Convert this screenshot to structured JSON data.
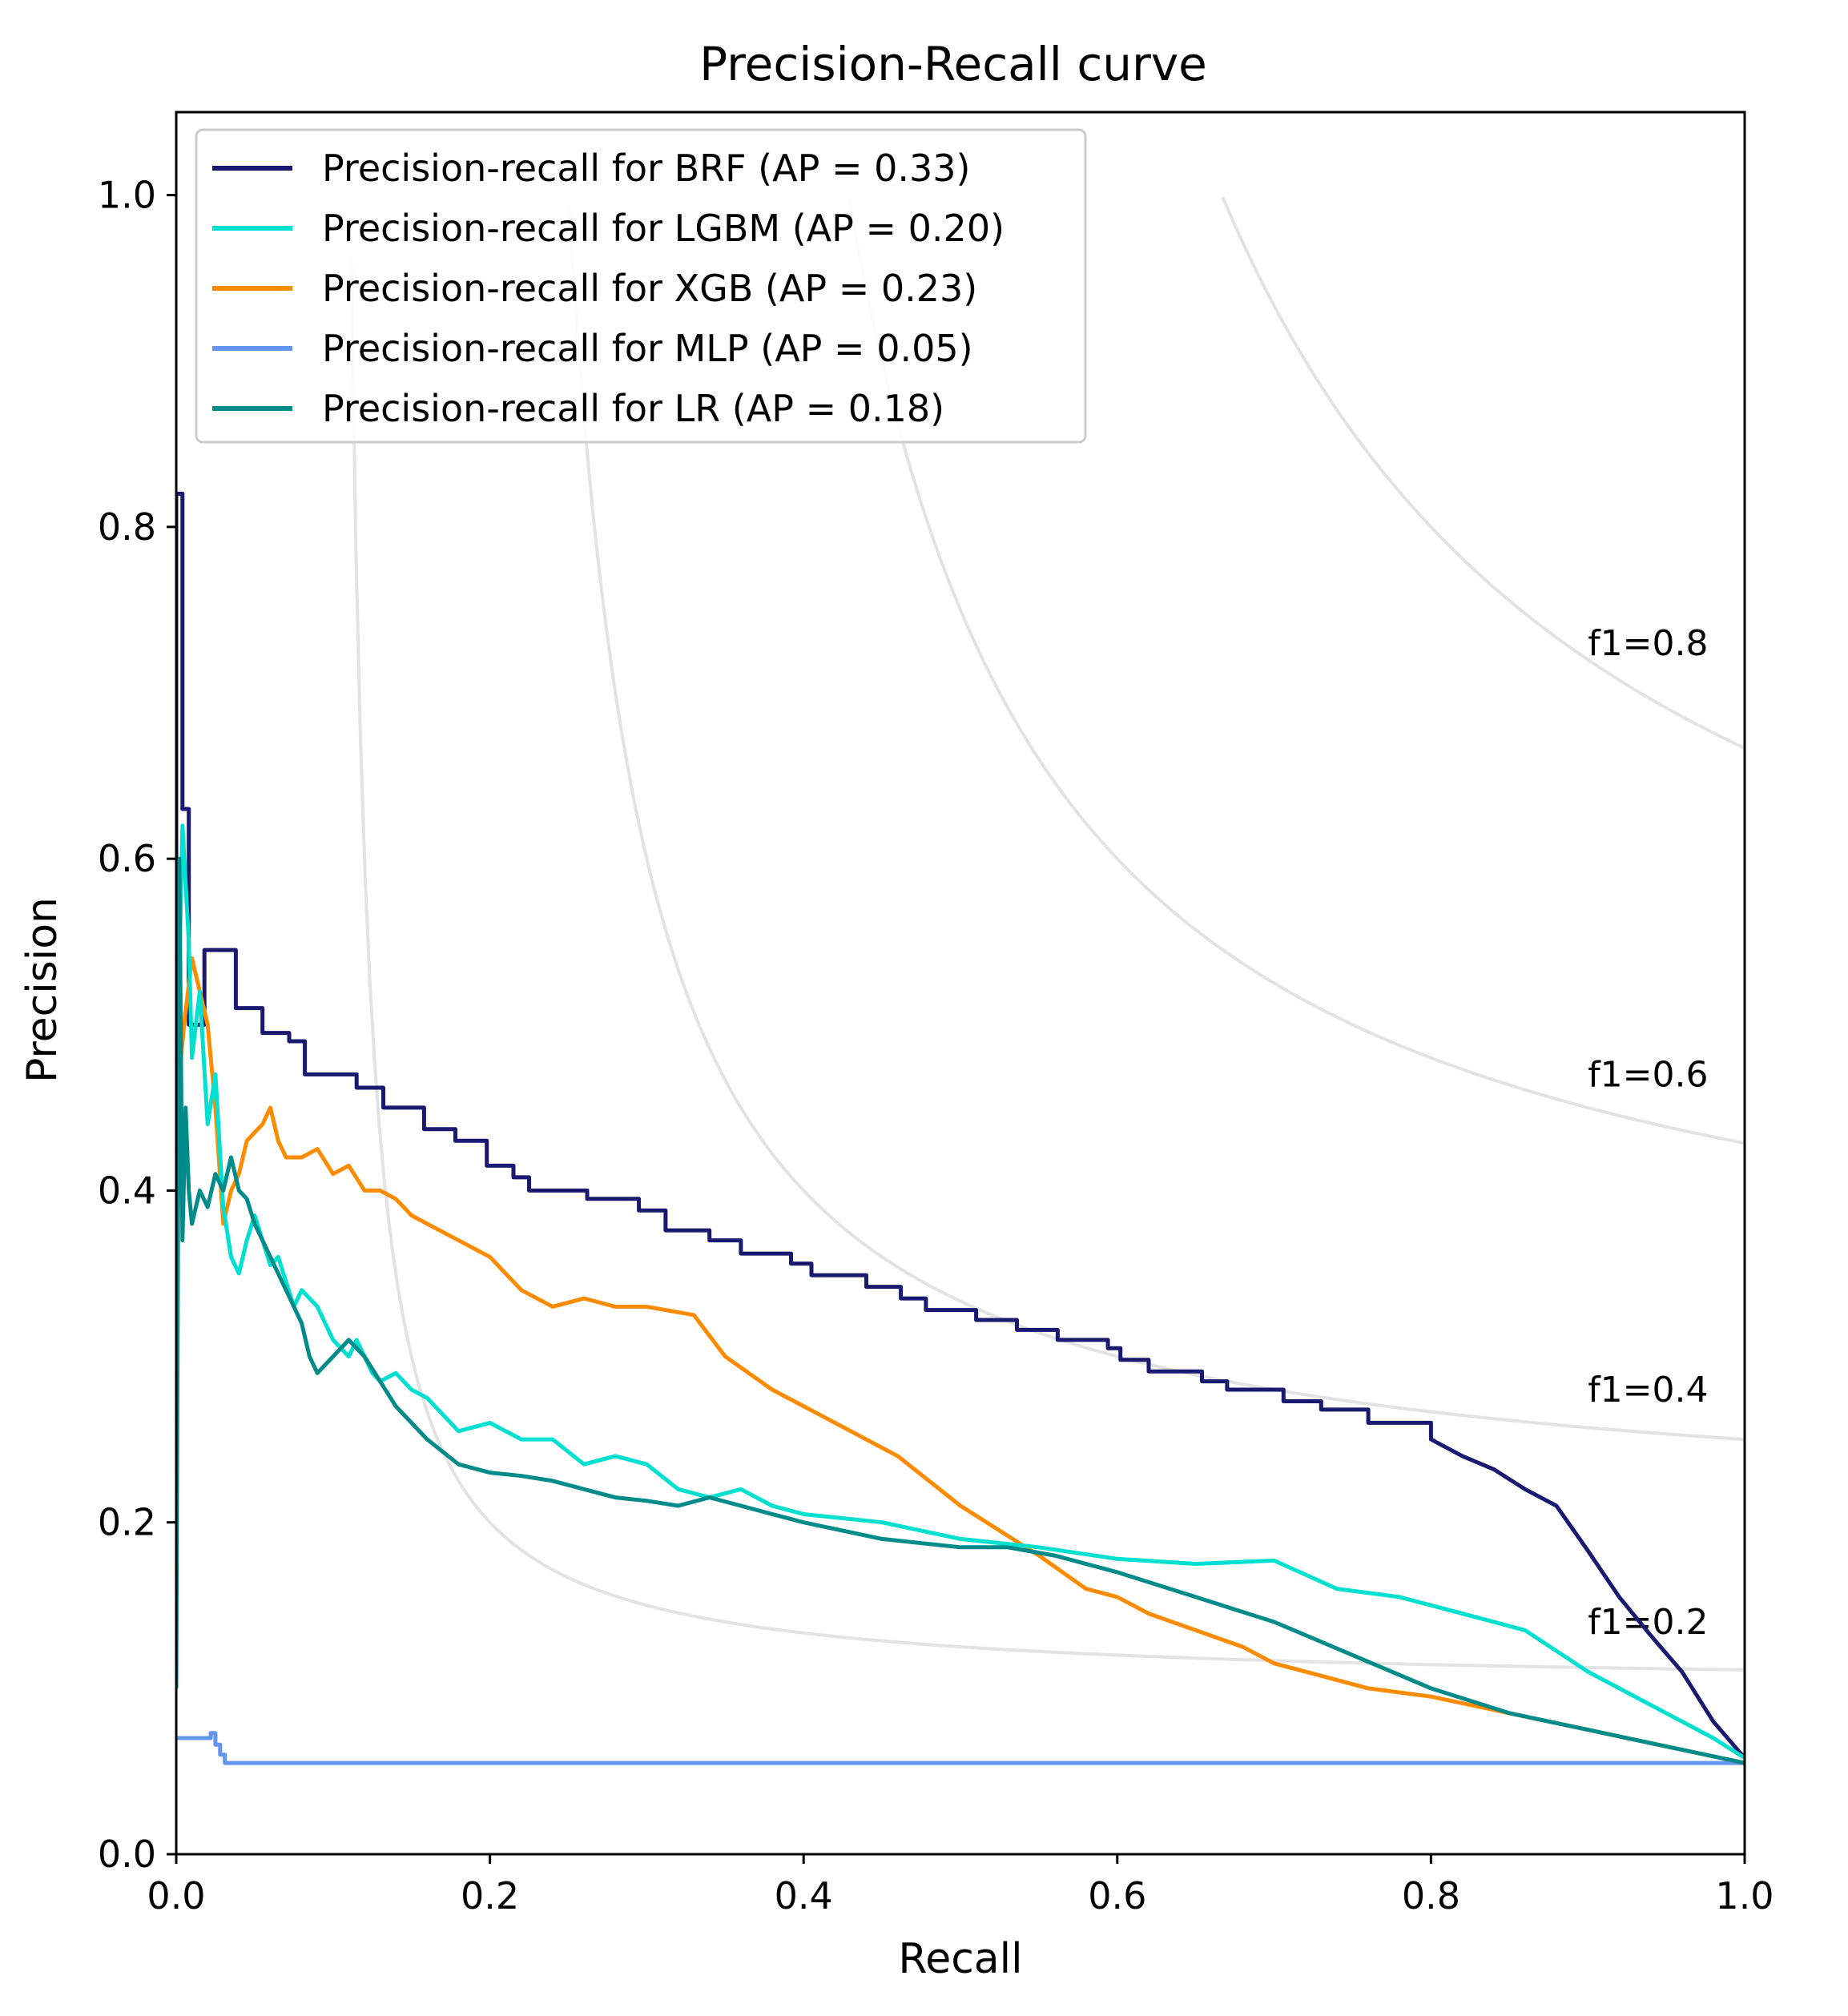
{
  "chart_data": {
    "type": "line",
    "title": "Precision-Recall curve",
    "xlabel": "Recall",
    "ylabel": "Precision",
    "xlim": [
      0.0,
      1.0
    ],
    "ylim": [
      0.0,
      1.05
    ],
    "xticks": [
      0.0,
      0.2,
      0.4,
      0.6,
      0.8,
      1.0
    ],
    "yticks": [
      0.0,
      0.2,
      0.4,
      0.6,
      0.8,
      1.0
    ],
    "xtick_labels": [
      "0.0",
      "0.2",
      "0.4",
      "0.6",
      "0.8",
      "1.0"
    ],
    "ytick_labels": [
      "0.0",
      "0.2",
      "0.4",
      "0.6",
      "0.8",
      "1.0"
    ],
    "grid": false,
    "legend_position": "top-left",
    "iso_f1": [
      {
        "f1": 0.2,
        "label": "f1=0.2",
        "label_y": 0.14
      },
      {
        "f1": 0.4,
        "label": "f1=0.4",
        "label_y": 0.28
      },
      {
        "f1": 0.6,
        "label": "f1=0.6",
        "label_y": 0.47
      },
      {
        "f1": 0.8,
        "label": "f1=0.8",
        "label_y": 0.73
      }
    ],
    "series": [
      {
        "name": "Precision-recall for  BRF (AP = 0.33)",
        "color": "#191970",
        "x": [
          0.0,
          0.0,
          0.004,
          0.004,
          0.008,
          0.008,
          0.018,
          0.018,
          0.038,
          0.038,
          0.055,
          0.055,
          0.072,
          0.072,
          0.082,
          0.082,
          0.115,
          0.115,
          0.132,
          0.132,
          0.158,
          0.158,
          0.178,
          0.178,
          0.198,
          0.198,
          0.215,
          0.215,
          0.225,
          0.225,
          0.262,
          0.262,
          0.295,
          0.295,
          0.312,
          0.312,
          0.34,
          0.34,
          0.36,
          0.36,
          0.392,
          0.392,
          0.405,
          0.405,
          0.44,
          0.44,
          0.462,
          0.462,
          0.478,
          0.478,
          0.51,
          0.51,
          0.536,
          0.536,
          0.562,
          0.562,
          0.594,
          0.594,
          0.602,
          0.602,
          0.62,
          0.62,
          0.654,
          0.654,
          0.67,
          0.67,
          0.706,
          0.706,
          0.73,
          0.73,
          0.76,
          0.76,
          0.8,
          0.8,
          0.82,
          0.84,
          0.86,
          0.88,
          0.9,
          0.92,
          0.94,
          0.96,
          0.98,
          1.0
        ],
        "y": [
          0.45,
          0.82,
          0.82,
          0.63,
          0.63,
          0.5,
          0.5,
          0.545,
          0.545,
          0.51,
          0.51,
          0.495,
          0.495,
          0.49,
          0.49,
          0.47,
          0.47,
          0.462,
          0.462,
          0.45,
          0.45,
          0.437,
          0.437,
          0.43,
          0.43,
          0.415,
          0.415,
          0.408,
          0.408,
          0.4,
          0.4,
          0.395,
          0.395,
          0.388,
          0.388,
          0.376,
          0.376,
          0.37,
          0.37,
          0.362,
          0.362,
          0.356,
          0.356,
          0.349,
          0.349,
          0.342,
          0.342,
          0.335,
          0.335,
          0.328,
          0.328,
          0.322,
          0.322,
          0.316,
          0.316,
          0.31,
          0.31,
          0.305,
          0.305,
          0.298,
          0.298,
          0.291,
          0.291,
          0.285,
          0.285,
          0.28,
          0.28,
          0.273,
          0.273,
          0.268,
          0.268,
          0.26,
          0.26,
          0.25,
          0.24,
          0.232,
          0.22,
          0.21,
          0.183,
          0.155,
          0.132,
          0.11,
          0.08,
          0.058
        ]
      },
      {
        "name": "Precision-recall for  LGBM (AP = 0.20)",
        "color": "#00e0d0",
        "x": [
          0.0,
          0.004,
          0.008,
          0.01,
          0.015,
          0.02,
          0.025,
          0.03,
          0.035,
          0.04,
          0.045,
          0.05,
          0.055,
          0.06,
          0.065,
          0.07,
          0.075,
          0.08,
          0.09,
          0.1,
          0.11,
          0.115,
          0.12,
          0.125,
          0.13,
          0.14,
          0.15,
          0.16,
          0.18,
          0.2,
          0.22,
          0.24,
          0.26,
          0.28,
          0.3,
          0.32,
          0.34,
          0.36,
          0.38,
          0.4,
          0.45,
          0.5,
          0.55,
          0.6,
          0.65,
          0.7,
          0.74,
          0.78,
          0.82,
          0.86,
          0.9,
          0.94,
          0.98,
          1.0
        ],
        "y": [
          0.45,
          0.62,
          0.55,
          0.48,
          0.52,
          0.44,
          0.47,
          0.39,
          0.36,
          0.35,
          0.37,
          0.385,
          0.37,
          0.355,
          0.36,
          0.345,
          0.33,
          0.34,
          0.33,
          0.31,
          0.3,
          0.31,
          0.3,
          0.29,
          0.285,
          0.29,
          0.28,
          0.275,
          0.255,
          0.26,
          0.25,
          0.25,
          0.235,
          0.24,
          0.235,
          0.22,
          0.215,
          0.22,
          0.21,
          0.205,
          0.2,
          0.19,
          0.185,
          0.178,
          0.175,
          0.177,
          0.16,
          0.155,
          0.145,
          0.135,
          0.11,
          0.09,
          0.07,
          0.058
        ]
      },
      {
        "name": "Precision-recall for  XGB (AP = 0.23)",
        "color": "#ff8c00",
        "x": [
          0.0,
          0.005,
          0.01,
          0.015,
          0.02,
          0.025,
          0.03,
          0.035,
          0.04,
          0.045,
          0.05,
          0.055,
          0.06,
          0.065,
          0.07,
          0.08,
          0.09,
          0.1,
          0.11,
          0.12,
          0.13,
          0.14,
          0.15,
          0.16,
          0.18,
          0.2,
          0.22,
          0.24,
          0.26,
          0.28,
          0.3,
          0.33,
          0.35,
          0.38,
          0.42,
          0.46,
          0.5,
          0.55,
          0.58,
          0.6,
          0.62,
          0.65,
          0.68,
          0.7,
          0.72,
          0.76,
          0.8,
          0.85,
          0.9,
          0.95,
          1.0
        ],
        "y": [
          0.45,
          0.5,
          0.54,
          0.52,
          0.5,
          0.45,
          0.38,
          0.4,
          0.41,
          0.43,
          0.435,
          0.44,
          0.45,
          0.43,
          0.42,
          0.42,
          0.425,
          0.41,
          0.415,
          0.4,
          0.4,
          0.395,
          0.385,
          0.38,
          0.37,
          0.36,
          0.34,
          0.33,
          0.335,
          0.33,
          0.33,
          0.325,
          0.3,
          0.28,
          0.26,
          0.24,
          0.21,
          0.18,
          0.16,
          0.155,
          0.145,
          0.135,
          0.125,
          0.115,
          0.11,
          0.1,
          0.095,
          0.085,
          0.075,
          0.065,
          0.055
        ]
      },
      {
        "name": "Precision-recall for  MLP (AP = 0.05)",
        "color": "#6495ed",
        "x": [
          0.0,
          0.022,
          0.022,
          0.025,
          0.025,
          0.028,
          0.028,
          0.031,
          0.031,
          1.0
        ],
        "y": [
          0.07,
          0.07,
          0.073,
          0.073,
          0.066,
          0.066,
          0.06,
          0.06,
          0.055,
          0.055
        ]
      },
      {
        "name": "Precision-recall for  LR (AP = 0.18)",
        "color": "#008b8b",
        "x": [
          0.0,
          0.002,
          0.004,
          0.006,
          0.008,
          0.01,
          0.015,
          0.02,
          0.025,
          0.03,
          0.035,
          0.04,
          0.045,
          0.05,
          0.055,
          0.06,
          0.065,
          0.07,
          0.075,
          0.08,
          0.085,
          0.09,
          0.1,
          0.11,
          0.12,
          0.13,
          0.14,
          0.15,
          0.16,
          0.18,
          0.2,
          0.22,
          0.24,
          0.26,
          0.28,
          0.3,
          0.32,
          0.34,
          0.36,
          0.38,
          0.4,
          0.45,
          0.5,
          0.53,
          0.56,
          0.6,
          0.65,
          0.7,
          0.75,
          0.8,
          0.85,
          0.9,
          0.95,
          1.0
        ],
        "y": [
          0.1,
          0.6,
          0.37,
          0.45,
          0.4,
          0.38,
          0.4,
          0.39,
          0.41,
          0.4,
          0.42,
          0.4,
          0.395,
          0.38,
          0.37,
          0.36,
          0.35,
          0.34,
          0.33,
          0.32,
          0.3,
          0.29,
          0.3,
          0.31,
          0.3,
          0.285,
          0.27,
          0.26,
          0.25,
          0.235,
          0.23,
          0.228,
          0.225,
          0.22,
          0.215,
          0.213,
          0.21,
          0.215,
          0.21,
          0.205,
          0.2,
          0.19,
          0.185,
          0.185,
          0.18,
          0.17,
          0.155,
          0.14,
          0.12,
          0.1,
          0.085,
          0.075,
          0.065,
          0.055
        ]
      }
    ]
  }
}
